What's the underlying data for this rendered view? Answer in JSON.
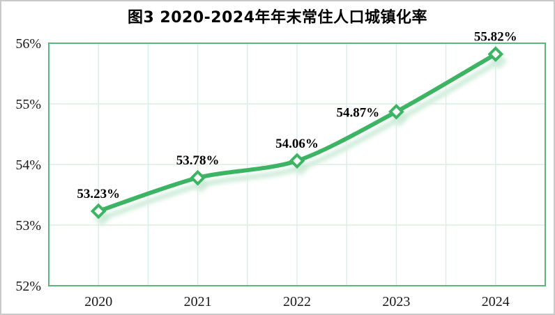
{
  "chart": {
    "title": "图3 2020-2024年年末常住人口城镇化率",
    "colors": {
      "line": "#3cb464",
      "marker_fill": "#ffffff",
      "grid": "#d9efe3",
      "plot_border": "#59b87d",
      "shadow": "#b4e2c6",
      "text": "#000000",
      "frame_border": "#c9c9c9",
      "background": "#ffffff"
    }
  },
  "chart_data": {
    "type": "line",
    "title": "图3 2020-2024年年末常住人口城镇化率",
    "categories": [
      "2020",
      "2021",
      "2022",
      "2023",
      "2024"
    ],
    "series": [
      {
        "name": "年末常住人口城镇化率",
        "values": [
          53.23,
          53.78,
          54.06,
          54.87,
          55.82
        ]
      }
    ],
    "point_labels": [
      {
        "text": "53.23%",
        "placement": "above"
      },
      {
        "text": "53.78%",
        "placement": "above"
      },
      {
        "text": "54.06%",
        "placement": "above"
      },
      {
        "text": "54.87%",
        "placement": "left"
      },
      {
        "text": "55.82%",
        "placement": "above"
      }
    ],
    "xlabel": "",
    "ylabel": "",
    "ylim": [
      52,
      56
    ],
    "yticks": [
      {
        "value": 56,
        "label": "56%"
      },
      {
        "value": 55,
        "label": "55%"
      },
      {
        "value": 54,
        "label": "54%"
      },
      {
        "value": 53,
        "label": "53%"
      },
      {
        "value": 52,
        "label": "52%"
      }
    ],
    "grid": true,
    "minor_vertical_gridlines": true,
    "legend_position": "none",
    "marker": "diamond"
  }
}
